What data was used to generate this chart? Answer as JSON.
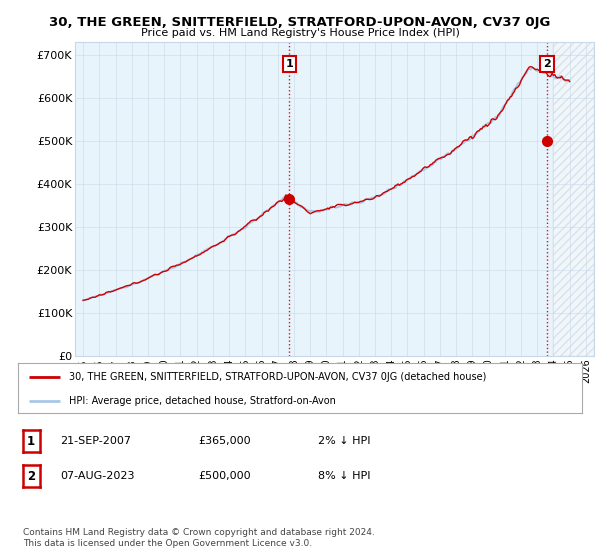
{
  "title": "30, THE GREEN, SNITTERFIELD, STRATFORD-UPON-AVON, CV37 0JG",
  "subtitle": "Price paid vs. HM Land Registry's House Price Index (HPI)",
  "ylim": [
    0,
    730000
  ],
  "yticks": [
    0,
    100000,
    200000,
    300000,
    400000,
    500000,
    600000,
    700000
  ],
  "ytick_labels": [
    "£0",
    "£100K",
    "£200K",
    "£300K",
    "£400K",
    "£500K",
    "£600K",
    "£700K"
  ],
  "hpi_color": "#a8c8e8",
  "price_color": "#cc0000",
  "sale1_date": 2007.72,
  "sale1_price": 365000,
  "sale2_date": 2023.6,
  "sale2_price": 500000,
  "legend_label1": "30, THE GREEN, SNITTERFIELD, STRATFORD-UPON-AVON, CV37 0JG (detached house)",
  "legend_label2": "HPI: Average price, detached house, Stratford-on-Avon",
  "table_row1": [
    "1",
    "21-SEP-2007",
    "£365,000",
    "2% ↓ HPI"
  ],
  "table_row2": [
    "2",
    "07-AUG-2023",
    "£500,000",
    "8% ↓ HPI"
  ],
  "footer": "Contains HM Land Registry data © Crown copyright and database right 2024.\nThis data is licensed under the Open Government Licence v3.0.",
  "bg_color": "#ffffff",
  "plot_bg_color": "#e8f4fc",
  "grid_color": "#c8d8e8",
  "hatch_bg": "#f0f0f0"
}
